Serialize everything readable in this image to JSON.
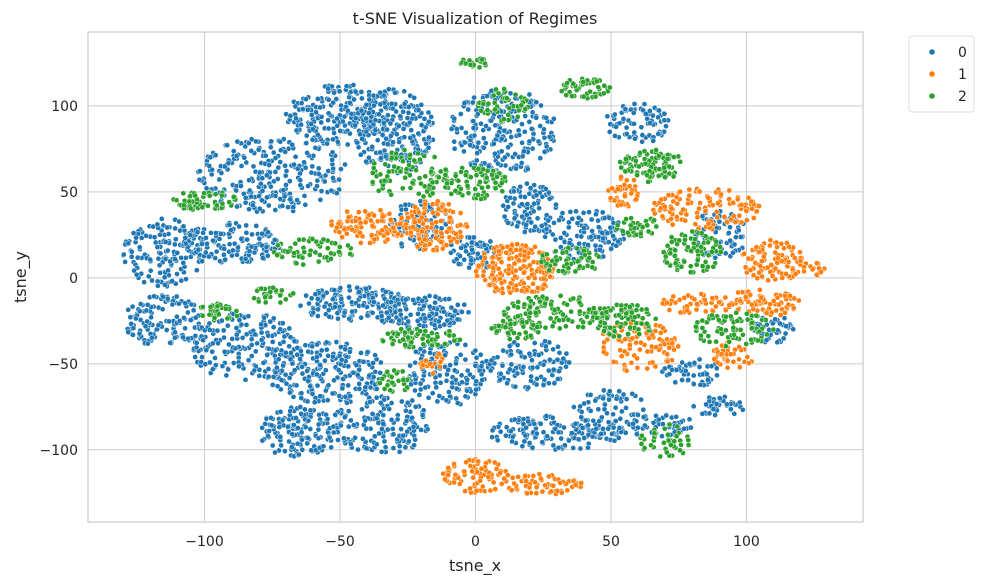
{
  "chart_data": {
    "type": "scatter",
    "title": "t-SNE Visualization of Regimes",
    "xlabel": "tsne_x",
    "ylabel": "tsne_y",
    "xlim": [
      -143,
      143
    ],
    "ylim": [
      -142,
      143
    ],
    "xticks": [
      -100,
      -50,
      0,
      50,
      100
    ],
    "yticks": [
      -100,
      -50,
      0,
      50,
      100
    ],
    "xtick_labels": [
      "−100",
      "−50",
      "0",
      "50",
      "100"
    ],
    "ytick_labels": [
      "−100",
      "−50",
      "0",
      "50",
      "100"
    ],
    "grid": true,
    "legend_position": "outside-top-right",
    "series": [
      {
        "name": "0",
        "color": "#1f77b4",
        "clusters": [
          {
            "cx": -75,
            "cy": 60,
            "rx": 28,
            "ry": 22,
            "n": 260
          },
          {
            "cx": -50,
            "cy": 95,
            "rx": 20,
            "ry": 18,
            "n": 220
          },
          {
            "cx": -30,
            "cy": 85,
            "rx": 15,
            "ry": 25,
            "n": 200
          },
          {
            "cx": 10,
            "cy": 85,
            "rx": 20,
            "ry": 25,
            "n": 230
          },
          {
            "cx": 60,
            "cy": 90,
            "rx": 12,
            "ry": 12,
            "n": 80
          },
          {
            "cx": -115,
            "cy": 15,
            "rx": 15,
            "ry": 20,
            "n": 150
          },
          {
            "cx": -90,
            "cy": 20,
            "rx": 18,
            "ry": 12,
            "n": 140
          },
          {
            "cx": -115,
            "cy": -25,
            "rx": 15,
            "ry": 15,
            "n": 130
          },
          {
            "cx": -85,
            "cy": -40,
            "rx": 20,
            "ry": 20,
            "n": 180
          },
          {
            "cx": -55,
            "cy": -55,
            "rx": 22,
            "ry": 18,
            "n": 230
          },
          {
            "cx": -45,
            "cy": -15,
            "rx": 20,
            "ry": 10,
            "n": 160
          },
          {
            "cx": -20,
            "cy": -20,
            "rx": 18,
            "ry": 10,
            "n": 130
          },
          {
            "cx": -65,
            "cy": -90,
            "rx": 15,
            "ry": 15,
            "n": 140
          },
          {
            "cx": -35,
            "cy": -85,
            "rx": 18,
            "ry": 18,
            "n": 160
          },
          {
            "cx": -10,
            "cy": -55,
            "rx": 15,
            "ry": 20,
            "n": 140
          },
          {
            "cx": 20,
            "cy": -50,
            "rx": 15,
            "ry": 15,
            "n": 110
          },
          {
            "cx": 30,
            "cy": -90,
            "rx": 25,
            "ry": 10,
            "n": 150
          },
          {
            "cx": 50,
            "cy": -80,
            "rx": 15,
            "ry": 15,
            "n": 90
          },
          {
            "cx": 40,
            "cy": 25,
            "rx": 15,
            "ry": 15,
            "n": 120
          },
          {
            "cx": 20,
            "cy": 40,
            "rx": 10,
            "ry": 15,
            "n": 90
          },
          {
            "cx": -20,
            "cy": 30,
            "rx": 12,
            "ry": 15,
            "n": 80
          },
          {
            "cx": 90,
            "cy": 25,
            "rx": 10,
            "ry": 15,
            "n": 80
          },
          {
            "cx": 90,
            "cy": -75,
            "rx": 10,
            "ry": 6,
            "n": 40
          },
          {
            "cx": 70,
            "cy": -85,
            "rx": 10,
            "ry": 8,
            "n": 40
          },
          {
            "cx": 110,
            "cy": -30,
            "rx": 8,
            "ry": 8,
            "n": 40
          },
          {
            "cx": 0,
            "cy": 15,
            "rx": 10,
            "ry": 10,
            "n": 60
          },
          {
            "cx": 80,
            "cy": -55,
            "rx": 12,
            "ry": 8,
            "n": 50
          }
        ]
      },
      {
        "name": "1",
        "color": "#ff7f0e",
        "clusters": [
          {
            "cx": -40,
            "cy": 30,
            "rx": 15,
            "ry": 10,
            "n": 100
          },
          {
            "cx": -15,
            "cy": 30,
            "rx": 12,
            "ry": 15,
            "n": 120
          },
          {
            "cx": 15,
            "cy": 5,
            "rx": 15,
            "ry": 15,
            "n": 200
          },
          {
            "cx": 85,
            "cy": 40,
            "rx": 20,
            "ry": 12,
            "n": 120
          },
          {
            "cx": 110,
            "cy": 10,
            "rx": 12,
            "ry": 12,
            "n": 100
          },
          {
            "cx": 105,
            "cy": -15,
            "rx": 15,
            "ry": 8,
            "n": 80
          },
          {
            "cx": 60,
            "cy": -40,
            "rx": 15,
            "ry": 15,
            "n": 100
          },
          {
            "cx": 95,
            "cy": -45,
            "rx": 8,
            "ry": 8,
            "n": 40
          },
          {
            "cx": 0,
            "cy": -115,
            "rx": 12,
            "ry": 10,
            "n": 80
          },
          {
            "cx": 25,
            "cy": -120,
            "rx": 15,
            "ry": 6,
            "n": 60
          },
          {
            "cx": 55,
            "cy": 50,
            "rx": 6,
            "ry": 10,
            "n": 40
          },
          {
            "cx": 80,
            "cy": -15,
            "rx": 12,
            "ry": 6,
            "n": 50
          },
          {
            "cx": -15,
            "cy": -50,
            "rx": 6,
            "ry": 6,
            "n": 20
          },
          {
            "cx": 125,
            "cy": 5,
            "rx": 4,
            "ry": 4,
            "n": 15
          }
        ]
      },
      {
        "name": "2",
        "color": "#2ca02c",
        "clusters": [
          {
            "cx": -100,
            "cy": 45,
            "rx": 12,
            "ry": 6,
            "n": 60
          },
          {
            "cx": -25,
            "cy": 60,
            "rx": 15,
            "ry": 15,
            "n": 90
          },
          {
            "cx": 0,
            "cy": 55,
            "rx": 12,
            "ry": 10,
            "n": 80
          },
          {
            "cx": 10,
            "cy": 100,
            "rx": 10,
            "ry": 10,
            "n": 50
          },
          {
            "cx": 40,
            "cy": 110,
            "rx": 10,
            "ry": 6,
            "n": 50
          },
          {
            "cx": 65,
            "cy": 65,
            "rx": 12,
            "ry": 10,
            "n": 90
          },
          {
            "cx": 80,
            "cy": 15,
            "rx": 12,
            "ry": 12,
            "n": 90
          },
          {
            "cx": 30,
            "cy": -20,
            "rx": 20,
            "ry": 10,
            "n": 120
          },
          {
            "cx": 55,
            "cy": -25,
            "rx": 12,
            "ry": 10,
            "n": 80
          },
          {
            "cx": 95,
            "cy": -30,
            "rx": 15,
            "ry": 10,
            "n": 80
          },
          {
            "cx": -60,
            "cy": 15,
            "rx": 15,
            "ry": 8,
            "n": 60
          },
          {
            "cx": -20,
            "cy": -35,
            "rx": 15,
            "ry": 6,
            "n": 70
          },
          {
            "cx": 15,
            "cy": -30,
            "rx": 10,
            "ry": 6,
            "n": 50
          },
          {
            "cx": -30,
            "cy": -60,
            "rx": 6,
            "ry": 8,
            "n": 30
          },
          {
            "cx": 70,
            "cy": -95,
            "rx": 10,
            "ry": 10,
            "n": 40
          },
          {
            "cx": -95,
            "cy": -20,
            "rx": 8,
            "ry": 5,
            "n": 30
          },
          {
            "cx": 35,
            "cy": 10,
            "rx": 12,
            "ry": 8,
            "n": 60
          },
          {
            "cx": -75,
            "cy": -10,
            "rx": 8,
            "ry": 5,
            "n": 25
          },
          {
            "cx": 60,
            "cy": 30,
            "rx": 8,
            "ry": 6,
            "n": 35
          },
          {
            "cx": 0,
            "cy": 125,
            "rx": 6,
            "ry": 3,
            "n": 20
          }
        ]
      }
    ]
  }
}
